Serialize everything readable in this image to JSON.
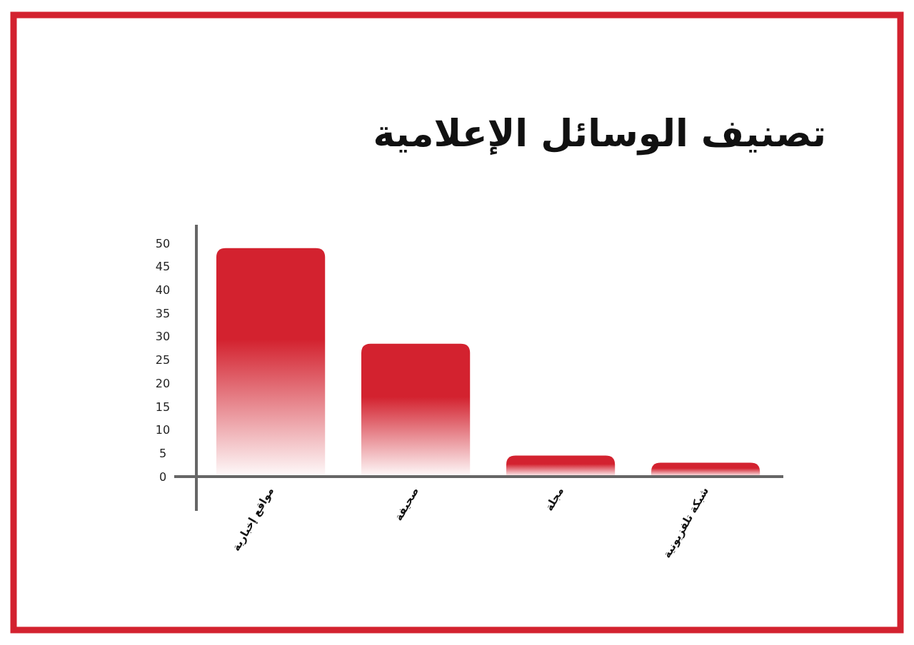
{
  "chart_data": {
    "type": "bar",
    "title": "تصنيف الوسائل الإعلامية",
    "categories": [
      "مواقع إخبارية",
      "صحيفة",
      "مجلة",
      "شبكة تلفزيونية"
    ],
    "values": [
      49,
      28.5,
      4.5,
      3
    ],
    "color": "#d3222f",
    "ylim": [
      0,
      54
    ],
    "yticks": [
      0,
      5,
      10,
      15,
      20,
      25,
      30,
      35,
      40,
      45,
      50
    ]
  }
}
